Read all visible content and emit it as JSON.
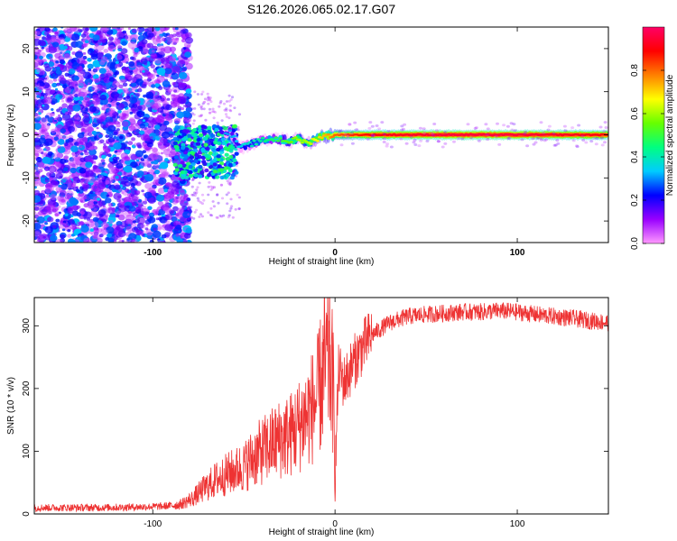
{
  "chart_data": [
    {
      "type": "heatmap",
      "title": "S126.2026.065.02.17.G07",
      "xlabel": "Height of straight line (km)",
      "ylabel": "Frequency (Hz)",
      "xlim": [
        -165,
        150
      ],
      "ylim": [
        -25,
        25
      ],
      "xticks": [
        -100,
        0,
        100
      ],
      "xtick_labels": [
        "-100",
        "0",
        "100"
      ],
      "yticks": [
        -20,
        -10,
        0,
        10,
        20
      ],
      "ytick_labels": [
        "-20",
        "-10",
        "0",
        "10",
        "20"
      ],
      "colorbar": {
        "label": "Normalized spectral amplitude",
        "range": [
          0,
          1
        ],
        "ticks": [
          0.0,
          0.2,
          0.4,
          0.6,
          0.8
        ],
        "tick_labels": [
          "0.0",
          "0.2",
          "0.4",
          "0.6",
          "0.8"
        ],
        "colors": [
          "#ff99ff",
          "#9900ff",
          "#0000ff",
          "#00ccff",
          "#00ff80",
          "#66ff00",
          "#ffff00",
          "#ff8000",
          "#ff0000",
          "#ff0066"
        ]
      },
      "ridge": {
        "description_points": [
          {
            "x": -82,
            "y": -6,
            "amp": 0.3
          },
          {
            "x": -70,
            "y": -6,
            "amp": 0.35
          },
          {
            "x": -58,
            "y": 1,
            "amp": 0.3
          },
          {
            "x": -52,
            "y": -3,
            "amp": 0.35
          },
          {
            "x": -45,
            "y": -2,
            "amp": 0.4
          },
          {
            "x": -37,
            "y": -1,
            "amp": 0.45
          },
          {
            "x": -30,
            "y": -1,
            "amp": 0.5
          },
          {
            "x": -25,
            "y": -1.5,
            "amp": 0.55
          },
          {
            "x": -20,
            "y": -1,
            "amp": 0.6
          },
          {
            "x": -15,
            "y": -2,
            "amp": 0.6
          },
          {
            "x": -8,
            "y": -0.5,
            "amp": 0.7
          },
          {
            "x": 0,
            "y": 0,
            "amp": 0.8
          },
          {
            "x": 20,
            "y": 0,
            "amp": 0.9
          },
          {
            "x": 60,
            "y": 0,
            "amp": 0.95
          },
          {
            "x": 100,
            "y": 0,
            "amp": 0.95
          },
          {
            "x": 150,
            "y": 0,
            "amp": 0.9
          }
        ]
      }
    },
    {
      "type": "line",
      "xlabel": "Height of straight line (km)",
      "ylabel": "SNR (10 * v/v)",
      "xlim": [
        -165,
        150
      ],
      "ylim": [
        0,
        345
      ],
      "xticks": [
        -100,
        0,
        100
      ],
      "xtick_labels": [
        "-100",
        "0",
        "100"
      ],
      "yticks": [
        0,
        100,
        200,
        300
      ],
      "ytick_labels": [
        "0",
        "100",
        "200",
        "300"
      ],
      "series": [
        {
          "name": "SNR",
          "color": "#ee3333",
          "x": [
            -165,
            -150,
            -130,
            -110,
            -95,
            -85,
            -78,
            -72,
            -65,
            -58,
            -50,
            -45,
            -40,
            -35,
            -30,
            -25,
            -20,
            -15,
            -10,
            -6,
            -3,
            -1,
            0,
            2,
            5,
            10,
            15,
            20,
            30,
            40,
            50,
            60,
            70,
            80,
            90,
            100,
            110,
            120,
            130,
            140,
            150
          ],
          "y": [
            10,
            10,
            10,
            11,
            12,
            15,
            25,
            40,
            55,
            65,
            75,
            90,
            100,
            110,
            120,
            125,
            140,
            160,
            180,
            230,
            250,
            200,
            60,
            230,
            210,
            240,
            265,
            285,
            305,
            315,
            318,
            320,
            322,
            322,
            324,
            322,
            318,
            315,
            312,
            308,
            305
          ]
        }
      ]
    }
  ]
}
